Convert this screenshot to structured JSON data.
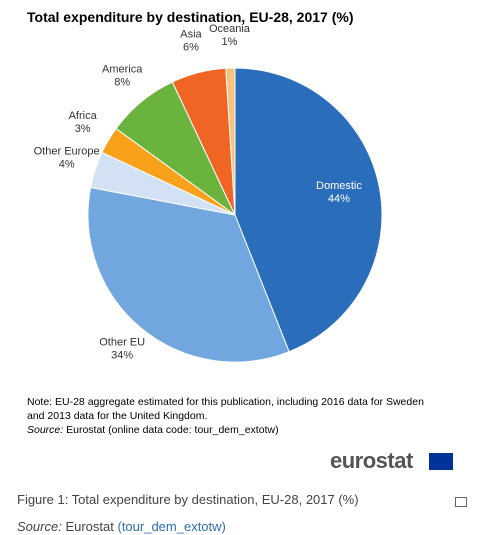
{
  "chart_data": {
    "type": "pie",
    "title": "Total expenditure by destination, EU-28, 2017 (%)",
    "categories": [
      "Domestic",
      "Other EU",
      "Other Europe",
      "Africa",
      "America",
      "Asia",
      "Oceania"
    ],
    "values": [
      44,
      34,
      4,
      3,
      8,
      6,
      1
    ],
    "value_labels": [
      "44%",
      "34%",
      "4%",
      "3%",
      "8%",
      "6%",
      "1%"
    ],
    "colors": [
      "#2a6ebb",
      "#72a6df",
      "#d2e2f4",
      "#f9a11b",
      "#6ab43e",
      "#f06424",
      "#f7c37c"
    ]
  },
  "note": "Note: EU-28 aggregate estimated for this publication, including 2016 data for Sweden and 2013 data for the United Kingdom.",
  "source_label": "Source:",
  "source_text": "Eurostat (online data code: tour_dem_extotw)",
  "logo": "eurostat",
  "caption": {
    "title": "Figure 1: Total expenditure by destination, EU-28, 2017 (%)",
    "source_label": "Source:",
    "source": "Eurostat",
    "link": "(tour_dem_extotw)"
  }
}
